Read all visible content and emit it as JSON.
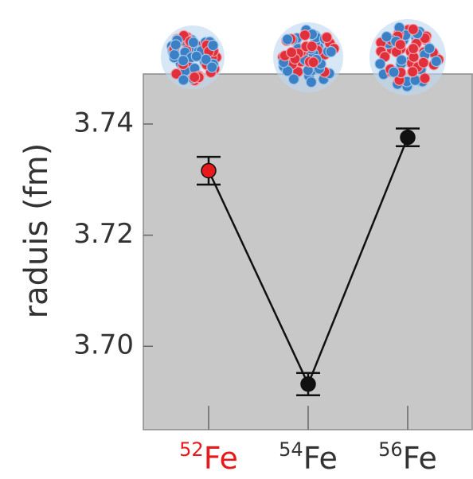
{
  "chart_data": {
    "type": "errorbar",
    "ylabel": "raduis (fm)",
    "categories": [
      "52Fe",
      "54Fe",
      "56Fe"
    ],
    "label_colors": [
      "#e8191b",
      "#333333",
      "#333333"
    ],
    "series": [
      {
        "values": [
          3.7316,
          3.6932,
          3.7376
        ],
        "errors": [
          0.0025,
          0.002,
          0.0016
        ],
        "color": "#111111",
        "point_colors": [
          "#e8191b",
          "#111111",
          "#111111"
        ]
      }
    ],
    "ylim": [
      3.685,
      3.749
    ],
    "yticks": [
      {
        "value": 3.7,
        "label": "3.70"
      },
      {
        "value": 3.72,
        "label": "3.72"
      },
      {
        "value": 3.74,
        "label": "3.74"
      }
    ]
  }
}
